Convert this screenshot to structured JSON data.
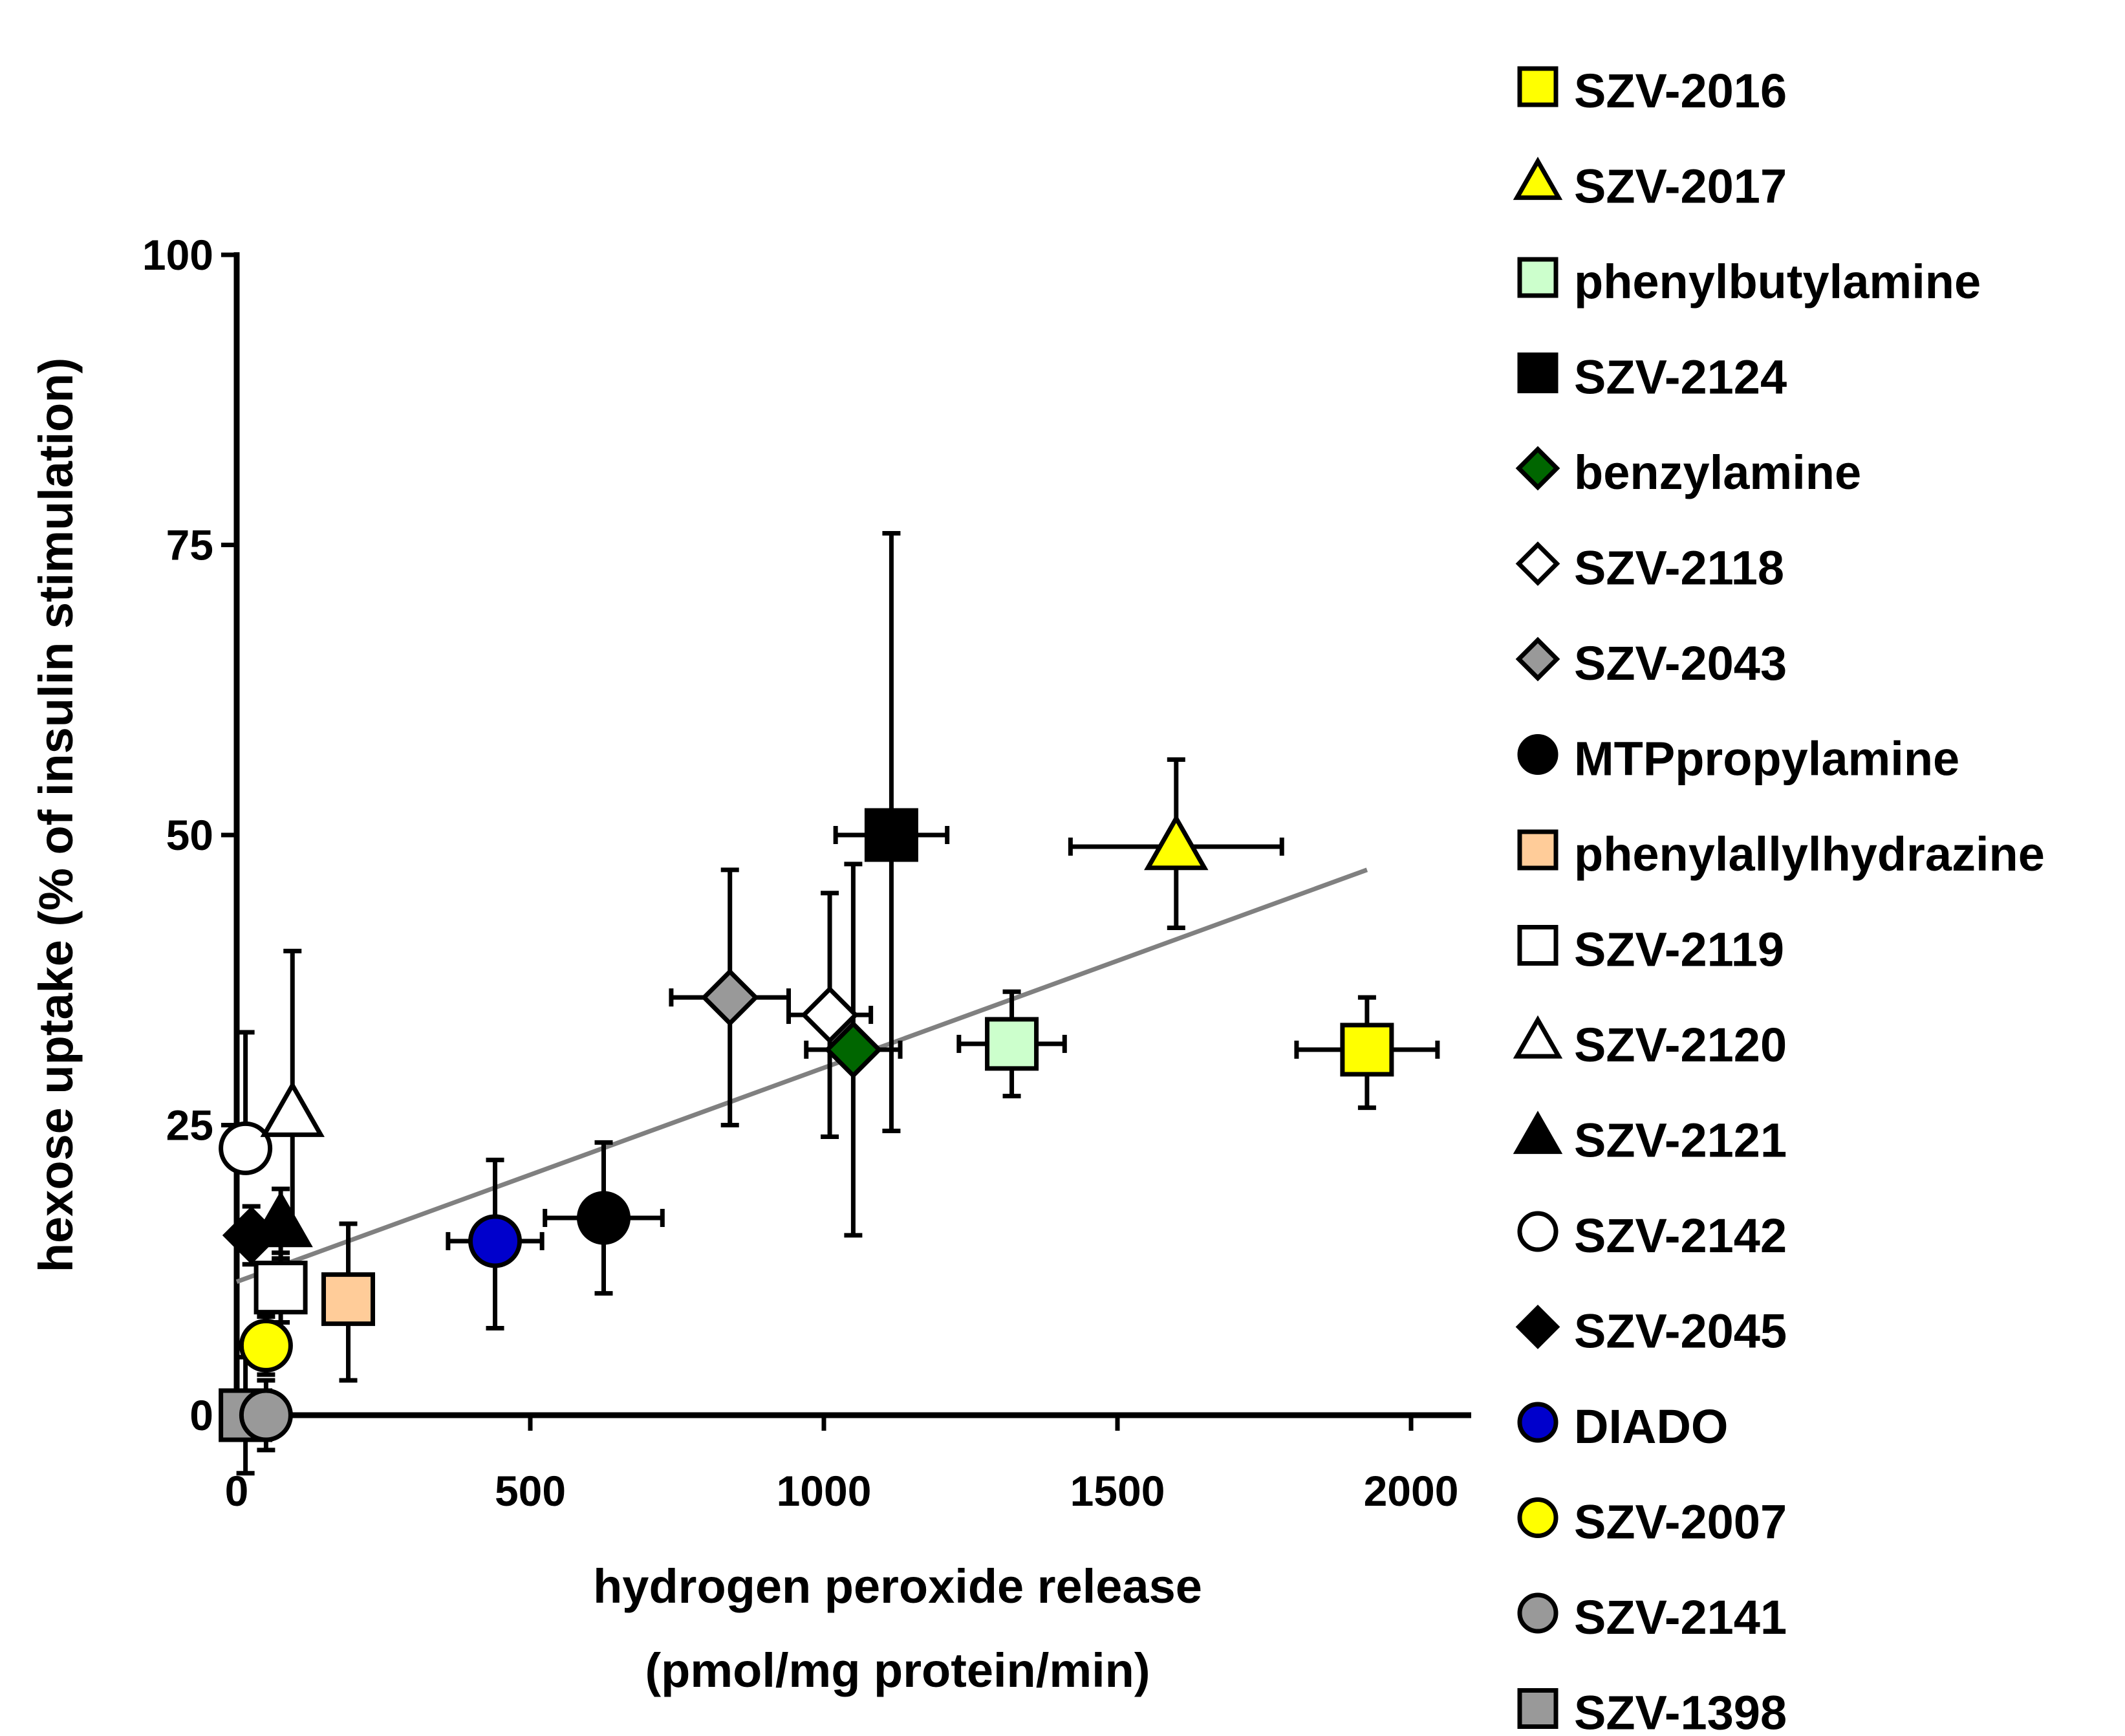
{
  "chart_data": {
    "type": "scatter",
    "xlabel_lines": [
      "hydrogen peroxide release",
      "(pmol/mg protein/min)"
    ],
    "ylabel": "hexose uptake (% of insulin  stimulation)",
    "xlim": [
      0,
      2100
    ],
    "ylim": [
      0,
      100
    ],
    "x_ticks": [
      0,
      500,
      1000,
      1500,
      2000
    ],
    "y_ticks": [
      0,
      25,
      50,
      75,
      100
    ],
    "trendline": {
      "x": [
        0,
        1925
      ],
      "y": [
        11.5,
        47
      ],
      "color": "#808080"
    },
    "series": [
      {
        "name": "SZV-2016",
        "marker": "square",
        "fill": "#ffff00",
        "x": 1925,
        "y": 31.5,
        "xerr": 120,
        "yerr_low": 5,
        "yerr_high": 4.5
      },
      {
        "name": "SZV-2017",
        "marker": "triangle",
        "fill": "#ffff00",
        "x": 1600,
        "y": 49,
        "xerr": 180,
        "yerr_low": 7,
        "yerr_high": 7.5
      },
      {
        "name": "phenylbutylamine",
        "marker": "square",
        "fill": "#ccffcc",
        "x": 1320,
        "y": 32,
        "xerr": 90,
        "yerr_low": 4.5,
        "yerr_high": 4.5
      },
      {
        "name": "SZV-2124",
        "marker": "square",
        "fill": "#000000",
        "x": 1115,
        "y": 50,
        "xerr": 95,
        "yerr_low": 25.5,
        "yerr_high": 26
      },
      {
        "name": "benzylamine",
        "marker": "diamond",
        "fill": "#006600",
        "x": 1050,
        "y": 31.5,
        "xerr": 80,
        "yerr_low": 16,
        "yerr_high": 16
      },
      {
        "name": "SZV-2118",
        "marker": "diamond",
        "fill": "#ffffff",
        "x": 1010,
        "y": 34.5,
        "xerr": 70,
        "yerr_low": 10.5,
        "yerr_high": 10.5
      },
      {
        "name": "SZV-2043",
        "marker": "diamond",
        "fill": "#999999",
        "x": 840,
        "y": 36,
        "xerr": 100,
        "yerr_low": 11,
        "yerr_high": 11
      },
      {
        "name": "MTPpropylamine",
        "marker": "circle",
        "fill": "#000000",
        "x": 625,
        "y": 17,
        "xerr": 100,
        "yerr_low": 6.5,
        "yerr_high": 6.5
      },
      {
        "name": "phenylallylhydrazine",
        "marker": "square",
        "fill": "#ffcc99",
        "x": 190,
        "y": 10,
        "xerr": 0,
        "yerr_low": 7,
        "yerr_high": 6.5
      },
      {
        "name": "SZV-2119",
        "marker": "square",
        "fill": "#ffffff",
        "x": 75,
        "y": 11,
        "xerr": 0,
        "yerr_low": 3,
        "yerr_high": 3
      },
      {
        "name": "SZV-2120",
        "marker": "triangle",
        "fill": "#ffffff",
        "x": 95,
        "y": 26,
        "xerr": 0,
        "yerr_low": 11,
        "yerr_high": 14
      },
      {
        "name": "SZV-2121",
        "marker": "triangle",
        "fill": "#000000",
        "x": 75,
        "y": 16.5,
        "xerr": 0,
        "yerr_low": 3,
        "yerr_high": 3
      },
      {
        "name": "SZV-2142",
        "marker": "circle",
        "fill": "#ffffff",
        "x": 15,
        "y": 23,
        "xerr": 0,
        "yerr_low": 0,
        "yerr_high": 10
      },
      {
        "name": "SZV-2045",
        "marker": "diamond",
        "fill": "#000000",
        "x": 25,
        "y": 15.5,
        "xerr": 0,
        "yerr_low": 2.5,
        "yerr_high": 2.5
      },
      {
        "name": "DIADO",
        "marker": "circle",
        "fill": "#0000cc",
        "x": 440,
        "y": 15,
        "xerr": 80,
        "yerr_low": 7.5,
        "yerr_high": 7
      },
      {
        "name": "SZV-2007",
        "marker": "circle",
        "fill": "#ffff00",
        "x": 50,
        "y": 6,
        "xerr": 0,
        "yerr_low": 2.5,
        "yerr_high": 2.5
      },
      {
        "name": "SZV-2141",
        "marker": "circle",
        "fill": "#999999",
        "x": 50,
        "y": 0,
        "xerr": 0,
        "yerr_low": 3,
        "yerr_high": 3
      },
      {
        "name": "SZV-1398",
        "marker": "square",
        "fill": "#999999",
        "x": 15,
        "y": 0,
        "xerr": 0,
        "yerr_low": 5,
        "yerr_high": 5
      }
    ]
  }
}
